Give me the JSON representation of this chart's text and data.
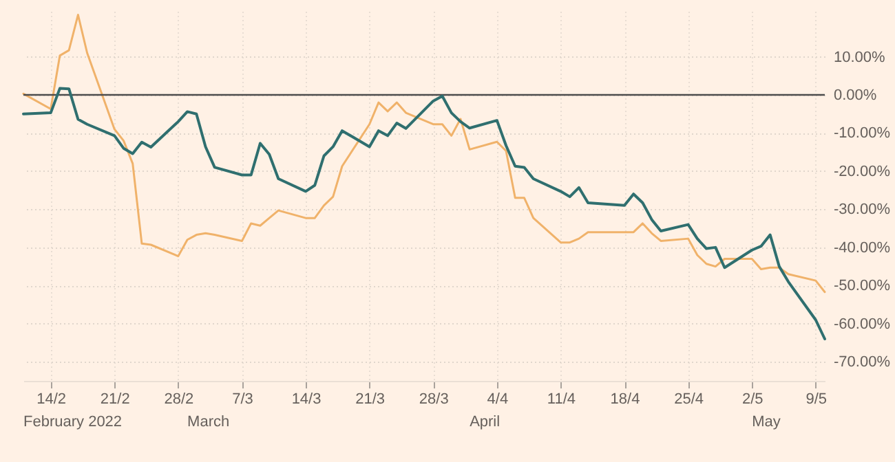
{
  "chart_data": {
    "type": "line",
    "x": [
      "2022-02-11",
      "2022-02-14",
      "2022-02-15",
      "2022-02-16",
      "2022-02-17",
      "2022-02-18",
      "2022-02-21",
      "2022-02-22",
      "2022-02-23",
      "2022-02-24",
      "2022-02-25",
      "2022-02-28",
      "2022-03-01",
      "2022-03-02",
      "2022-03-03",
      "2022-03-04",
      "2022-03-07",
      "2022-03-08",
      "2022-03-09",
      "2022-03-10",
      "2022-03-11",
      "2022-03-14",
      "2022-03-15",
      "2022-03-16",
      "2022-03-17",
      "2022-03-18",
      "2022-03-21",
      "2022-03-22",
      "2022-03-23",
      "2022-03-24",
      "2022-03-25",
      "2022-03-28",
      "2022-03-29",
      "2022-03-30",
      "2022-03-31",
      "2022-04-01",
      "2022-04-04",
      "2022-04-05",
      "2022-04-06",
      "2022-04-07",
      "2022-04-08",
      "2022-04-11",
      "2022-04-12",
      "2022-04-13",
      "2022-04-14",
      "2022-04-18",
      "2022-04-19",
      "2022-04-20",
      "2022-04-21",
      "2022-04-22",
      "2022-04-25",
      "2022-04-26",
      "2022-04-27",
      "2022-04-28",
      "2022-04-29",
      "2022-05-02",
      "2022-05-03",
      "2022-05-04",
      "2022-05-05",
      "2022-05-06",
      "2022-05-09",
      "2022-05-10"
    ],
    "series": [
      {
        "color": "#f0b26a",
        "values": [
          0.3,
          -3.7,
          10.3,
          11.7,
          21,
          11,
          -9,
          -12,
          -18,
          -39,
          -39.3,
          -42.3,
          -38,
          -36.7,
          -36.3,
          -36.7,
          -38.3,
          -33.7,
          -34.3,
          -32.3,
          -30.3,
          -32.3,
          -32.3,
          -29,
          -26.7,
          -18.7,
          -7.7,
          -2,
          -4.3,
          -2,
          -4.7,
          -7.7,
          -7.7,
          -10.7,
          -6.3,
          -14.3,
          -12.3,
          -14.7,
          -27,
          -27,
          -32.3,
          -38.7,
          -38.7,
          -37.7,
          -36,
          -36,
          -36,
          -33.7,
          -36.3,
          -38.3,
          -37.7,
          -42,
          -44.3,
          -45,
          -43,
          -43,
          -45.7,
          -45.3,
          -45.3,
          -47,
          -48.7,
          -51.7
        ]
      },
      {
        "color": "#2f6f6f",
        "values": [
          -5,
          -4.7,
          1.7,
          1.6,
          -6.4,
          -7.7,
          -10.7,
          -14,
          -15.4,
          -12.4,
          -13.7,
          -7,
          -4.4,
          -5,
          -13.6,
          -19,
          -21,
          -21,
          -12.7,
          -15.6,
          -22,
          -25.3,
          -23.7,
          -16,
          -13.6,
          -9.4,
          -13.6,
          -9.4,
          -10.7,
          -7.4,
          -8.8,
          -1.6,
          -0.3,
          -4.7,
          -7,
          -8.7,
          -6.7,
          -13.3,
          -18.7,
          -19,
          -22,
          -25.3,
          -26.7,
          -24.3,
          -28.3,
          -29,
          -26,
          -28.3,
          -32.7,
          -35.7,
          -34,
          -37.7,
          -40.3,
          -40,
          -45.3,
          -40.7,
          -39.7,
          -36.7,
          -45,
          -49,
          -59,
          -64
        ]
      }
    ],
    "xlim": [
      "2022-02-11",
      "2022-05-10"
    ],
    "xticks": [
      {
        "value": "2022-02-14",
        "label": "14/2"
      },
      {
        "value": "2022-02-21",
        "label": "21/2"
      },
      {
        "value": "2022-02-28",
        "label": "28/2"
      },
      {
        "value": "2022-03-07",
        "label": "7/3"
      },
      {
        "value": "2022-03-14",
        "label": "14/3"
      },
      {
        "value": "2022-03-21",
        "label": "21/3"
      },
      {
        "value": "2022-03-28",
        "label": "28/3"
      },
      {
        "value": "2022-04-04",
        "label": "4/4"
      },
      {
        "value": "2022-04-11",
        "label": "11/4"
      },
      {
        "value": "2022-04-18",
        "label": "18/4"
      },
      {
        "value": "2022-04-25",
        "label": "25/4"
      },
      {
        "value": "2022-05-02",
        "label": "2/5"
      },
      {
        "value": "2022-05-09",
        "label": "9/5"
      }
    ],
    "annotations": [
      "February 2022",
      "March",
      "April",
      "May"
    ],
    "ylim": [
      -75,
      22
    ],
    "yticks": [
      {
        "value": 10,
        "label": "10.00%"
      },
      {
        "value": 0,
        "label": "0.00%"
      },
      {
        "value": -10,
        "label": "-10.00%"
      },
      {
        "value": -20,
        "label": "-20.00%"
      },
      {
        "value": -30,
        "label": "-30.00%"
      },
      {
        "value": -40,
        "label": "-40.00%"
      },
      {
        "value": -50,
        "label": "-50.00%"
      },
      {
        "value": -60,
        "label": "-60.00%"
      },
      {
        "value": -70,
        "label": "-70.00%"
      }
    ],
    "ref_lines": [
      {
        "axis": "y",
        "value": 0,
        "color": "#4d4d4d"
      }
    ],
    "grid": true,
    "line_style": "solid"
  }
}
